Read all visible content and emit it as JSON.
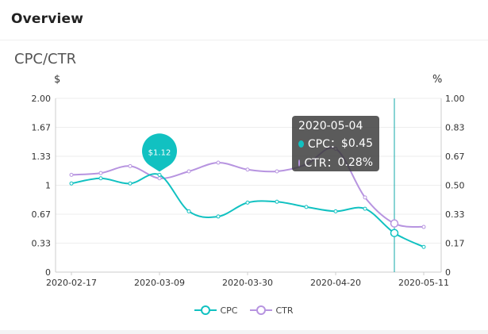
{
  "header": {
    "title": "Overview"
  },
  "chart_data": {
    "type": "line",
    "title": "CPC/CTR",
    "y_left_unit": "$",
    "y_right_unit": "%",
    "y_left_ticks": [
      "0",
      "0.33",
      "0.67",
      "1",
      "1.33",
      "1.67",
      "2.00"
    ],
    "y_right_ticks": [
      "0",
      "0.17",
      "0.33",
      "0.50",
      "0.67",
      "0.83",
      "1.00"
    ],
    "ylim_left": [
      0,
      2
    ],
    "ylim_right": [
      0,
      1
    ],
    "x_tick_labels": [
      "2020-02-17",
      "2020-03-09",
      "2020-03-30",
      "2020-04-20",
      "2020-05-11"
    ],
    "x": [
      "2020-02-17",
      "2020-02-24",
      "2020-03-02",
      "2020-03-09",
      "2020-03-16",
      "2020-03-23",
      "2020-03-30",
      "2020-04-06",
      "2020-04-13",
      "2020-04-20",
      "2020-04-27",
      "2020-05-04",
      "2020-05-11"
    ],
    "series": [
      {
        "name": "CPC",
        "axis": "left",
        "color": "#11c1c1",
        "values": [
          1.02,
          1.08,
          1.02,
          1.12,
          0.7,
          0.64,
          0.8,
          0.81,
          0.75,
          0.7,
          0.73,
          0.45,
          0.29
        ]
      },
      {
        "name": "CTR",
        "axis": "right",
        "color": "#b794e0",
        "values": [
          0.56,
          0.57,
          0.61,
          0.54,
          0.58,
          0.63,
          0.59,
          0.58,
          0.62,
          0.71,
          0.43,
          0.28,
          0.26
        ]
      }
    ],
    "marker_label": "$1.12",
    "marker_index": 3,
    "highlight_index": 11,
    "tooltip": {
      "date": "2020-05-04",
      "rows": [
        {
          "label": "CPC：",
          "value": "$0.45",
          "color": "#11c1c1"
        },
        {
          "label": "CTR：",
          "value": "0.28%",
          "color": "#b794e0"
        }
      ]
    },
    "legend": [
      "CPC",
      "CTR"
    ],
    "legend_placement": "bottom-center",
    "grid": true
  }
}
